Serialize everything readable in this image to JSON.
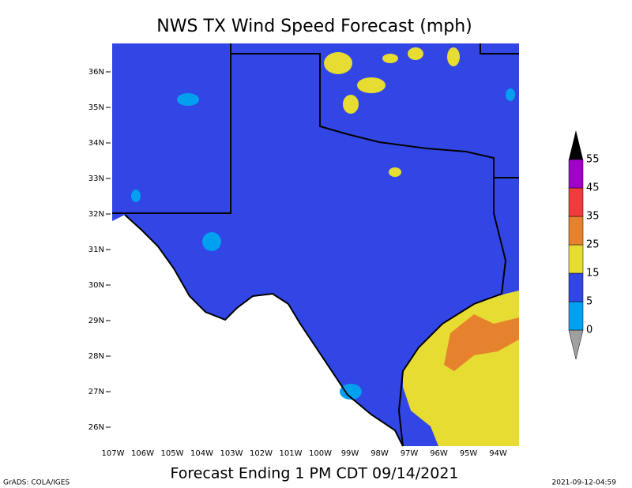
{
  "title": "NWS TX Wind Speed Forecast (mph)",
  "footer": "Forecast Ending 1 PM CDT 09/14/2021",
  "credit": "GrADS: COLA/IGES",
  "timestamp": "2021-09-12-04:59",
  "lat_labels": [
    "36N",
    "35N",
    "34N",
    "33N",
    "32N",
    "31N",
    "30N",
    "29N",
    "28N",
    "27N",
    "26N"
  ],
  "lon_labels": [
    "107W",
    "106W",
    "105W",
    "104W",
    "103W",
    "102W",
    "101W",
    "100W",
    "99W",
    "98W",
    "97W",
    "96W",
    "95W",
    "94W"
  ],
  "legend": {
    "levels": [
      0,
      5,
      15,
      25,
      35,
      45,
      55
    ],
    "colors": [
      "#a0a0a0",
      "#00a0f0",
      "#3246e6",
      "#e6dc32",
      "#e6822d",
      "#f03c3c",
      "#a000c8",
      "#000000"
    ]
  }
}
